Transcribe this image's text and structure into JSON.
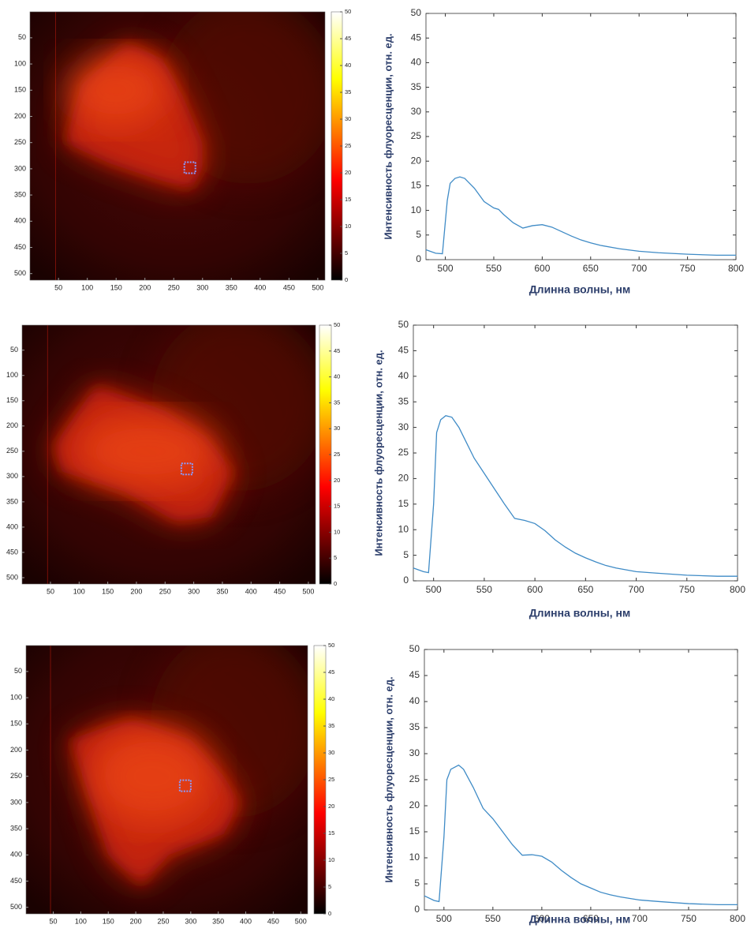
{
  "chart_data": [
    {
      "type": "heatmap",
      "xlim": [
        0.5,
        512.5
      ],
      "ylim": [
        0.5,
        512.5
      ],
      "xticks": [
        50,
        100,
        150,
        200,
        250,
        300,
        350,
        400,
        450,
        500
      ],
      "yticks": [
        50,
        100,
        150,
        200,
        250,
        300,
        350,
        400,
        450,
        500
      ],
      "clim": [
        0,
        50
      ],
      "cticks": [
        0,
        5,
        10,
        15,
        20,
        25,
        30,
        35,
        40,
        45,
        50
      ],
      "roi": [
        278,
        298
      ]
    },
    {
      "type": "line",
      "xlabel": "Длинна волны, нм",
      "ylabel": "Интенсивность флуоресценции, отн. ед.",
      "color": "#3f8bc6",
      "xlim": [
        480,
        800
      ],
      "ylim": [
        0,
        50
      ],
      "xticks": [
        500,
        550,
        600,
        650,
        700,
        750,
        800
      ],
      "yticks": [
        0,
        5,
        10,
        15,
        20,
        25,
        30,
        35,
        40,
        45,
        50
      ],
      "x": [
        480,
        490,
        497,
        502,
        505,
        510,
        515,
        520,
        530,
        540,
        550,
        555,
        560,
        570,
        580,
        590,
        600,
        610,
        620,
        630,
        640,
        650,
        660,
        680,
        700,
        720,
        750,
        780,
        800
      ],
      "values": [
        2.0,
        1.3,
        1.2,
        12,
        15.5,
        16.5,
        16.8,
        16.5,
        14.5,
        11.8,
        10.5,
        10.2,
        9.2,
        7.5,
        6.4,
        6.9,
        7.1,
        6.6,
        5.7,
        4.8,
        4.0,
        3.4,
        2.9,
        2.2,
        1.7,
        1.4,
        1.1,
        0.9,
        0.9
      ]
    },
    {
      "type": "heatmap",
      "xlim": [
        0.5,
        512.5
      ],
      "ylim": [
        0.5,
        512.5
      ],
      "xticks": [
        50,
        100,
        150,
        200,
        250,
        300,
        350,
        400,
        450,
        500
      ],
      "yticks": [
        50,
        100,
        150,
        200,
        250,
        300,
        350,
        400,
        450,
        500
      ],
      "clim": [
        0,
        50
      ],
      "cticks": [
        0,
        5,
        10,
        15,
        20,
        25,
        30,
        35,
        40,
        45,
        50
      ],
      "roi": [
        288,
        285
      ]
    },
    {
      "type": "line",
      "xlabel": "Длинна волны, нм",
      "ylabel": "Интенсивность флуоресценции, отн. ед.",
      "color": "#3f8bc6",
      "xlim": [
        480,
        800
      ],
      "ylim": [
        0,
        50
      ],
      "xticks": [
        500,
        550,
        600,
        650,
        700,
        750,
        800
      ],
      "yticks": [
        0,
        5,
        10,
        15,
        20,
        25,
        30,
        35,
        40,
        45,
        50
      ],
      "x": [
        480,
        490,
        495,
        500,
        503,
        507,
        512,
        518,
        525,
        530,
        540,
        550,
        560,
        570,
        580,
        590,
        600,
        610,
        620,
        630,
        640,
        650,
        660,
        670,
        680,
        700,
        720,
        750,
        780,
        800
      ],
      "values": [
        2.5,
        1.8,
        1.6,
        15,
        29,
        31.5,
        32.3,
        32,
        30,
        28,
        24,
        21,
        18,
        15,
        12.2,
        11.8,
        11.2,
        9.8,
        8.0,
        6.6,
        5.4,
        4.5,
        3.7,
        3.0,
        2.5,
        1.8,
        1.5,
        1.1,
        0.9,
        0.9
      ]
    },
    {
      "type": "heatmap",
      "xlim": [
        0.5,
        512.5
      ],
      "ylim": [
        0.5,
        512.5
      ],
      "xticks": [
        50,
        100,
        150,
        200,
        250,
        300,
        350,
        400,
        450,
        500
      ],
      "yticks": [
        50,
        100,
        150,
        200,
        250,
        300,
        350,
        400,
        450,
        500
      ],
      "clim": [
        0,
        50
      ],
      "cticks": [
        0,
        5,
        10,
        15,
        20,
        25,
        30,
        35,
        40,
        45,
        50
      ],
      "roi": [
        290,
        268
      ]
    },
    {
      "type": "line",
      "xlabel": "Длинна волны, нм",
      "ylabel": "Интенсивность флуоресценции, отн. ед.",
      "color": "#3f8bc6",
      "xlim": [
        480,
        800
      ],
      "ylim": [
        0,
        50
      ],
      "xticks": [
        500,
        550,
        600,
        650,
        700,
        750,
        800
      ],
      "yticks": [
        0,
        5,
        10,
        15,
        20,
        25,
        30,
        35,
        40,
        45,
        50
      ],
      "x": [
        480,
        490,
        495,
        500,
        503,
        507,
        515,
        520,
        530,
        540,
        550,
        560,
        570,
        580,
        590,
        600,
        610,
        620,
        630,
        640,
        650,
        660,
        670,
        680,
        700,
        720,
        750,
        780,
        800
      ],
      "values": [
        2.7,
        1.8,
        1.6,
        14,
        25,
        27,
        27.8,
        27,
        23.5,
        19.5,
        17.5,
        15,
        12.5,
        10.5,
        10.6,
        10.3,
        9.2,
        7.6,
        6.2,
        5.0,
        4.2,
        3.4,
        2.9,
        2.5,
        1.9,
        1.6,
        1.2,
        1.0,
        1.0
      ]
    }
  ]
}
